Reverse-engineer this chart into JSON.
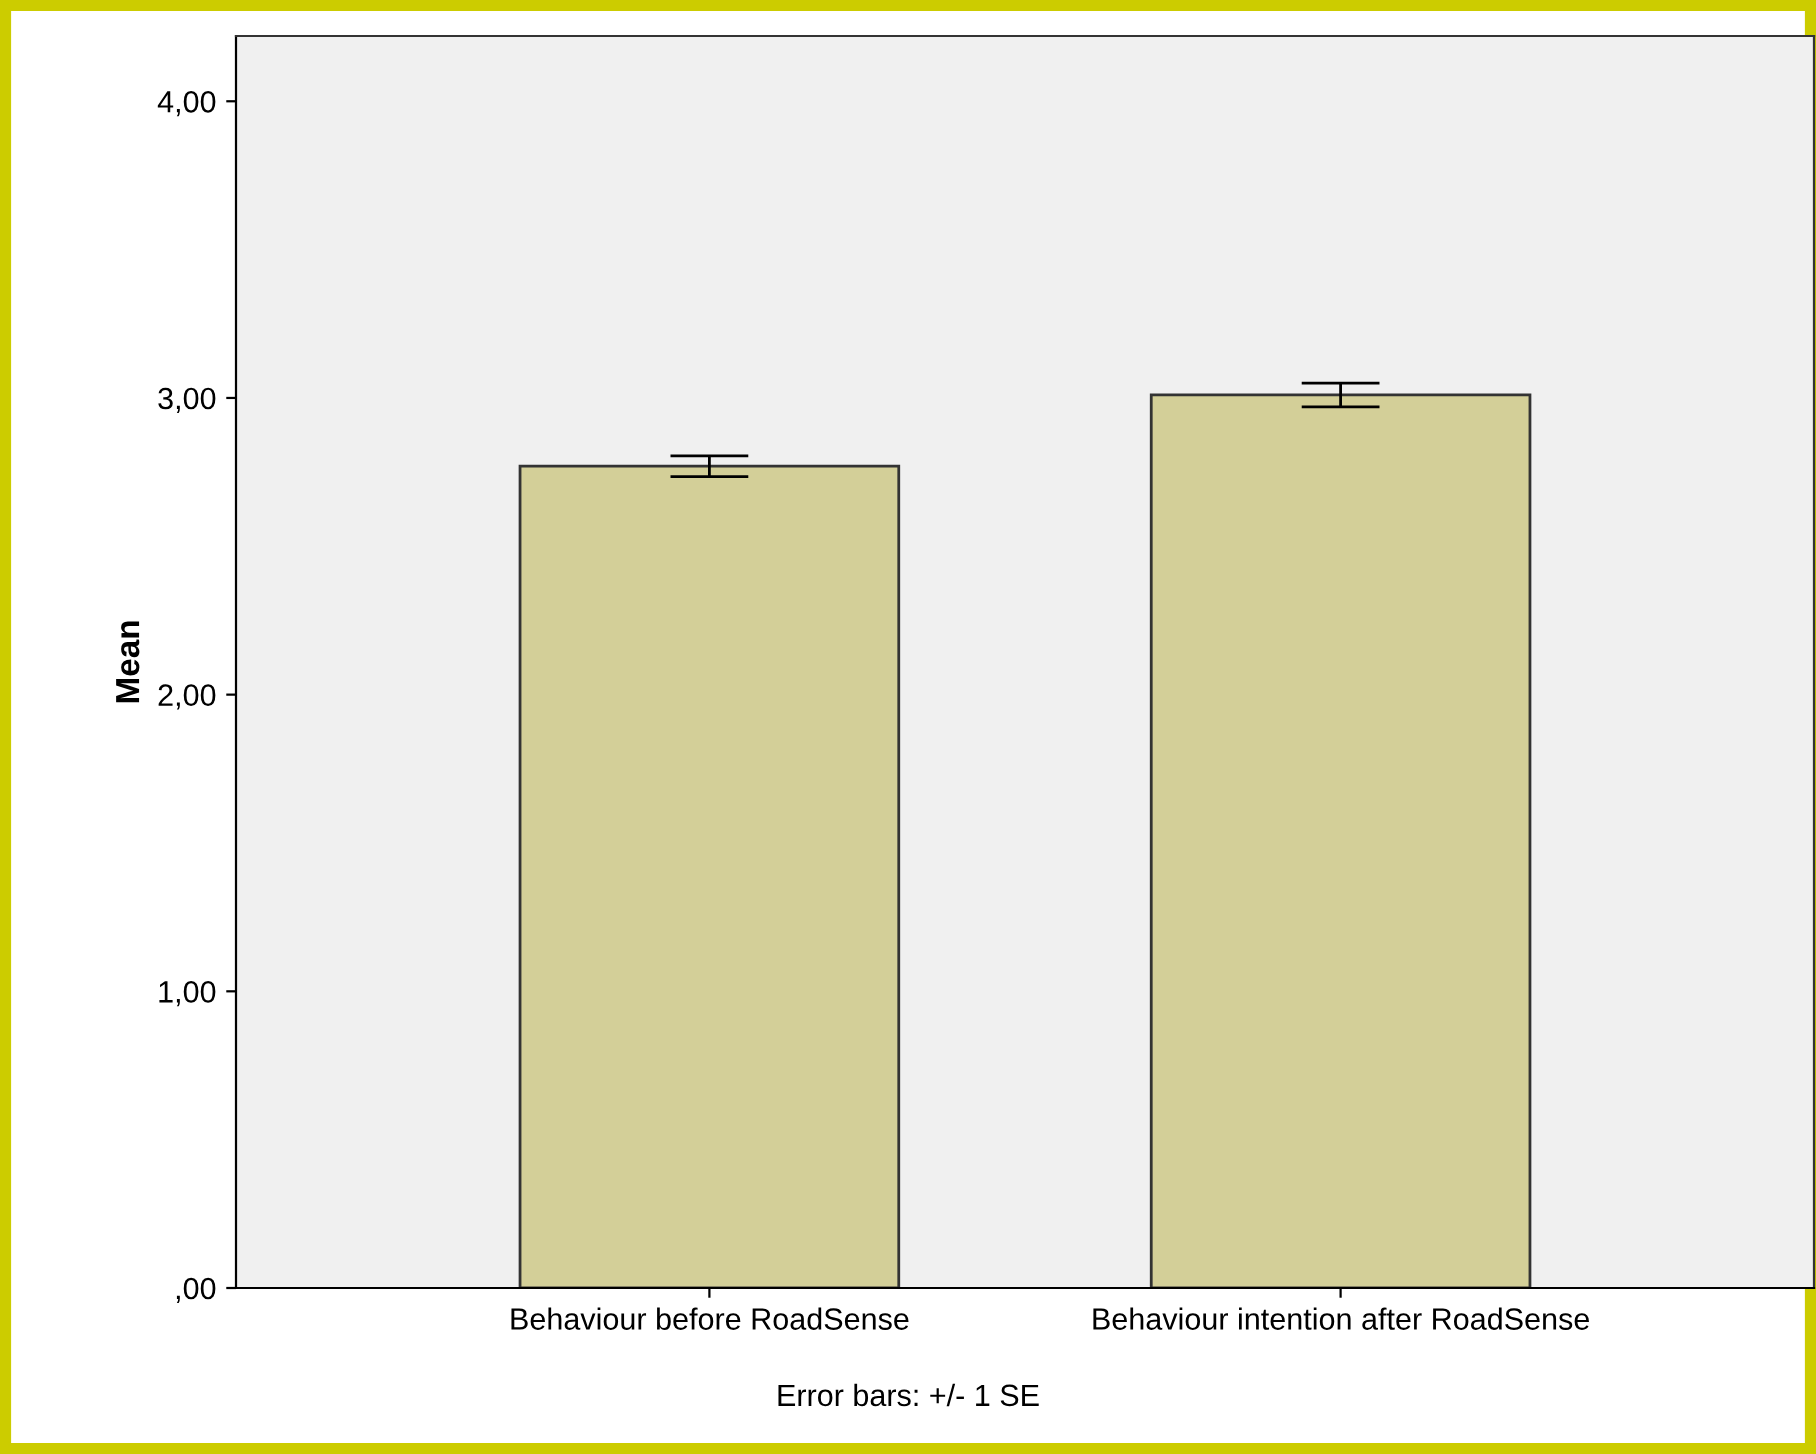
{
  "chart_data": {
    "type": "bar",
    "ylabel": "Mean",
    "categories": [
      "Behaviour before RoadSense",
      "Behaviour intention after RoadSense"
    ],
    "values": [
      2.77,
      3.01
    ],
    "errors": [
      0.035,
      0.04
    ],
    "color": "#d3cf98",
    "ylim": [
      0,
      4.22
    ],
    "yticks": [
      {
        "value": 0,
        "label": ",00"
      },
      {
        "value": 1,
        "label": "1,00"
      },
      {
        "value": 2,
        "label": "2,00"
      },
      {
        "value": 3,
        "label": "3,00"
      },
      {
        "value": 4,
        "label": "4,00"
      }
    ],
    "grid": false,
    "annotations": [
      "Error bars: +/- 1 SE"
    ]
  }
}
